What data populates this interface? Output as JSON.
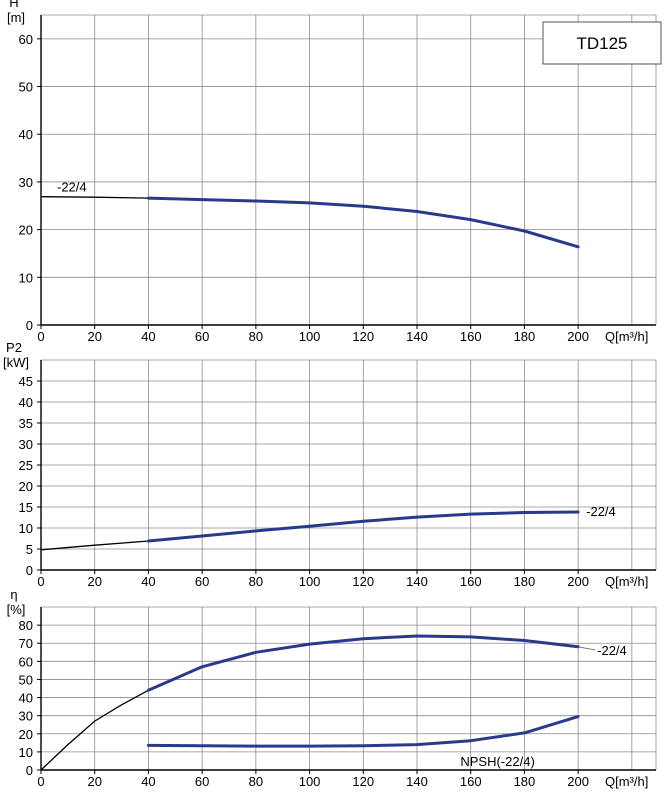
{
  "model": "TD125",
  "chart_data": [
    {
      "type": "line",
      "ylabel": "H",
      "yunit": "[m]",
      "xlabel": "Q[m³/h]",
      "xlim": [
        0,
        210
      ],
      "ylim": [
        0,
        65
      ],
      "xticks": [
        0,
        20,
        40,
        60,
        80,
        100,
        120,
        140,
        160,
        180,
        200
      ],
      "yticks": [
        0,
        10,
        20,
        30,
        40,
        50,
        60
      ],
      "grid": true,
      "series": [
        {
          "name": "-22/4",
          "extrapolated": {
            "x": [
              0,
              20,
              40
            ],
            "y": [
              26.9,
              26.8,
              26.6
            ]
          },
          "x": [
            40,
            60,
            80,
            100,
            120,
            140,
            160,
            180,
            200
          ],
          "y": [
            26.6,
            26.3,
            26.0,
            25.6,
            24.9,
            23.8,
            22.1,
            19.7,
            16.4
          ]
        }
      ]
    },
    {
      "type": "line",
      "ylabel": "P2",
      "yunit": "[kW]",
      "xlabel": "Q[m³/h]",
      "xlim": [
        0,
        210
      ],
      "ylim": [
        0,
        50
      ],
      "xticks": [
        0,
        20,
        40,
        60,
        80,
        100,
        120,
        140,
        160,
        180,
        200
      ],
      "yticks": [
        0,
        5,
        10,
        15,
        20,
        25,
        30,
        35,
        40,
        45
      ],
      "grid": true,
      "series": [
        {
          "name": "-22/4",
          "extrapolated": {
            "x": [
              0,
              20,
              40
            ],
            "y": [
              4.8,
              5.9,
              6.9
            ]
          },
          "x": [
            40,
            60,
            80,
            100,
            120,
            140,
            160,
            180,
            200
          ],
          "y": [
            6.9,
            8.1,
            9.3,
            10.4,
            11.6,
            12.6,
            13.3,
            13.7,
            13.8
          ]
        }
      ]
    },
    {
      "type": "line",
      "ylabel": "η",
      "yunit": "[%]",
      "xlabel": "Q[m³/h]",
      "xlim": [
        0,
        210
      ],
      "ylim": [
        0,
        90
      ],
      "xticks": [
        0,
        20,
        40,
        60,
        80,
        100,
        120,
        140,
        160,
        180,
        200
      ],
      "yticks": [
        0,
        10,
        20,
        30,
        40,
        50,
        60,
        70,
        80
      ],
      "grid": true,
      "series": [
        {
          "name": "-22/4",
          "extrapolated": {
            "x": [
              0,
              10,
              20,
              30,
              40
            ],
            "y": [
              0,
              14,
              27,
              36,
              44
            ]
          },
          "x": [
            40,
            60,
            80,
            100,
            120,
            140,
            160,
            180,
            200
          ],
          "y": [
            44,
            57,
            65,
            69.5,
            72.5,
            74,
            73.5,
            71.5,
            68
          ]
        },
        {
          "name": "NPSH(-22/4)",
          "x": [
            40,
            60,
            80,
            100,
            120,
            140,
            160,
            180,
            200
          ],
          "y": [
            13.6,
            13.4,
            13.2,
            13.2,
            13.4,
            14.0,
            16.2,
            20.5,
            29.5
          ]
        }
      ]
    }
  ]
}
